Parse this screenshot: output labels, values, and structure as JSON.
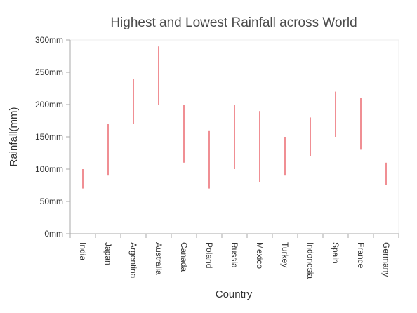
{
  "chart_data": {
    "type": "range-column",
    "title": "Highest and Lowest Rainfall across World",
    "xlabel": "Country",
    "ylabel": "Rainfall(mm)",
    "ylim": [
      0,
      300
    ],
    "y_ticks": [
      0,
      50,
      100,
      150,
      200,
      250,
      300
    ],
    "y_tick_labels": [
      "0mm",
      "50mm",
      "100mm",
      "150mm",
      "200mm",
      "250mm",
      "300mm"
    ],
    "categories": [
      "India",
      "Japan",
      "Argentina",
      "Australia",
      "Canada",
      "Poland",
      "Russia",
      "Mexico",
      "Turkey",
      "Indonesia",
      "Spain",
      "France",
      "Germany"
    ],
    "low": [
      70,
      90,
      170,
      200,
      110,
      70,
      100,
      80,
      90,
      120,
      150,
      130,
      75
    ],
    "high": [
      100,
      170,
      240,
      290,
      200,
      160,
      200,
      190,
      150,
      180,
      220,
      210,
      110
    ],
    "grid": false,
    "legend": "none",
    "colors": {
      "range": "#e8535b",
      "axis": "#aaaaaa",
      "plot_border": "#eeeeee"
    }
  }
}
